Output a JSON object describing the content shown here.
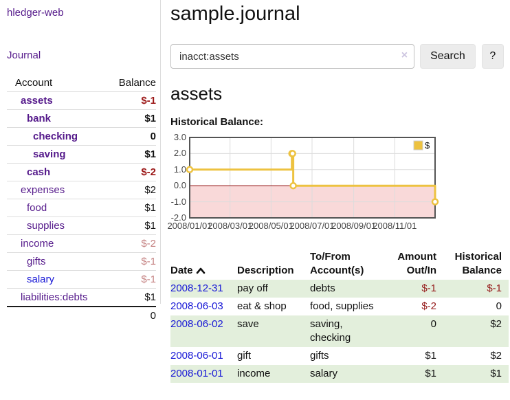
{
  "app": {
    "brand": "hledger-web",
    "nav_journal": "Journal"
  },
  "sidebar": {
    "accounts_header": {
      "account": "Account",
      "balance": "Balance"
    },
    "accounts": [
      {
        "name": "assets",
        "level": 1,
        "bold": true,
        "link_color": "purple",
        "balance": "$-1",
        "balance_style": "neg-strong"
      },
      {
        "name": "bank",
        "level": 2,
        "bold": true,
        "link_color": "purple",
        "balance": "$1",
        "balance_style": "normal"
      },
      {
        "name": "checking",
        "level": 3,
        "bold": true,
        "link_color": "purple",
        "balance": "0",
        "balance_style": "normal"
      },
      {
        "name": "saving",
        "level": 3,
        "bold": true,
        "link_color": "purple",
        "balance": "$1",
        "balance_style": "normal"
      },
      {
        "name": "cash",
        "level": 2,
        "bold": true,
        "link_color": "purple",
        "balance": "$-2",
        "balance_style": "neg-strong"
      },
      {
        "name": "expenses",
        "level": 1,
        "bold": false,
        "link_color": "purple",
        "balance": "$2",
        "balance_style": "normal"
      },
      {
        "name": "food",
        "level": 2,
        "bold": false,
        "link_color": "purple",
        "balance": "$1",
        "balance_style": "normal"
      },
      {
        "name": "supplies",
        "level": 2,
        "bold": false,
        "link_color": "purple",
        "balance": "$1",
        "balance_style": "normal"
      },
      {
        "name": "income",
        "level": 1,
        "bold": false,
        "link_color": "purple",
        "balance": "$-2",
        "balance_style": "neg-soft"
      },
      {
        "name": "gifts",
        "level": 2,
        "bold": false,
        "link_color": "purple",
        "balance": "$-1",
        "balance_style": "neg-soft"
      },
      {
        "name": "salary",
        "level": 2,
        "bold": false,
        "link_color": "blue",
        "balance": "$-1",
        "balance_style": "neg-soft"
      },
      {
        "name": "liabilities:debts",
        "level": 1,
        "bold": false,
        "link_color": "purple",
        "balance": "$1",
        "balance_style": "normal"
      }
    ],
    "total": "0"
  },
  "header": {
    "title": "sample.journal"
  },
  "search": {
    "value": "inacct:assets",
    "clear_icon": "×",
    "button_label": "Search",
    "help_label": "?"
  },
  "account_page": {
    "title": "assets",
    "chart_label": "Historical Balance:"
  },
  "chart_data": {
    "type": "line",
    "step": true,
    "title": "Historical Balance",
    "series": [
      {
        "name": "$",
        "color": "#edc240",
        "points": [
          [
            "2008-01-01",
            1
          ],
          [
            "2008-06-01",
            2
          ],
          [
            "2008-06-02",
            2
          ],
          [
            "2008-06-03",
            0
          ],
          [
            "2008-12-31",
            -1
          ]
        ]
      }
    ],
    "x_ticks": [
      "2008/01/01",
      "2008/03/01",
      "2008/05/01",
      "2008/07/01",
      "2008/09/01",
      "2008/11/01"
    ],
    "y_ticks": [
      3.0,
      2.0,
      1.0,
      0.0,
      -1.0,
      -2.0
    ],
    "xlim": [
      "2008-01-01",
      "2008-12-31"
    ],
    "ylim": [
      -2,
      3
    ],
    "grid": true,
    "legend": {
      "label": "$",
      "position": "top-right"
    },
    "negative_region_color": "#f9d9d9",
    "zero_line_color": "#8b0000"
  },
  "register": {
    "columns": {
      "date": "Date",
      "description": "Description",
      "accounts": "To/From Account(s)",
      "amount": "Amount Out/In",
      "balance": "Historical Balance"
    },
    "sort": {
      "column": "date",
      "direction": "ascending",
      "icon": "chevron-up"
    },
    "rows": [
      {
        "date": "2008-12-31",
        "description": "pay off",
        "accounts": "debts",
        "amount": "$-1",
        "amount_neg": true,
        "balance": "$-1",
        "balance_neg": true,
        "shaded": true
      },
      {
        "date": "2008-06-03",
        "description": "eat & shop",
        "accounts": "food, supplies",
        "amount": "$-2",
        "amount_neg": true,
        "balance": "0",
        "balance_neg": false,
        "shaded": false
      },
      {
        "date": "2008-06-02",
        "description": "save",
        "accounts": "saving, checking",
        "amount": "0",
        "amount_neg": false,
        "balance": "$2",
        "balance_neg": false,
        "shaded": true
      },
      {
        "date": "2008-06-01",
        "description": "gift",
        "accounts": "gifts",
        "amount": "$1",
        "amount_neg": false,
        "balance": "$2",
        "balance_neg": false,
        "shaded": false
      },
      {
        "date": "2008-01-01",
        "description": "income",
        "accounts": "salary",
        "amount": "$1",
        "amount_neg": false,
        "balance": "$1",
        "balance_neg": false,
        "shaded": true
      }
    ]
  },
  "colors": {
    "link_purple": "#551a8b",
    "link_blue": "#1717d6",
    "negative_strong": "#9b1616",
    "negative_soft": "#c48080",
    "register_negative": "#951a1a",
    "row_stripe_green": "#e3efdc",
    "series_gold": "#edc240",
    "chart_negative_fill": "#f9d9d9",
    "chart_zero_line": "#8b0000",
    "chart_border": "#545454",
    "grid_line": "#dcdcdc",
    "button_bg": "#ececec",
    "divider": "#dddddd"
  }
}
